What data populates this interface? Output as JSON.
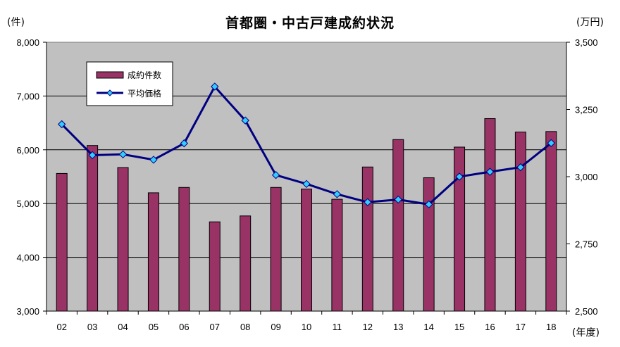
{
  "chart_data": {
    "type": "bar",
    "title": "首都圏・中古戸建成約状況",
    "y_left_unit": "(件)",
    "y_right_unit": "(万円)",
    "x_unit": "(年度)",
    "categories": [
      "02",
      "03",
      "04",
      "05",
      "06",
      "07",
      "08",
      "09",
      "10",
      "11",
      "12",
      "13",
      "14",
      "15",
      "16",
      "17",
      "18"
    ],
    "ylim_left": [
      3000,
      8000
    ],
    "yticks_left": [
      3000,
      4000,
      5000,
      6000,
      7000,
      8000
    ],
    "yticks_left_labels": [
      "3,000",
      "4,000",
      "5,000",
      "6,000",
      "7,000",
      "8,000"
    ],
    "ylim_right": [
      2500,
      3500
    ],
    "yticks_right": [
      2500,
      2750,
      3000,
      3250,
      3500
    ],
    "yticks_right_labels": [
      "2,500",
      "2,750",
      "3,000",
      "3,250",
      "3,500"
    ],
    "grid": "horizontal",
    "legend_position": "top-left",
    "series": [
      {
        "name": "成約件数",
        "type": "bar",
        "axis": "left",
        "color": "#993366",
        "values": [
          5560,
          6080,
          5670,
          5200,
          5300,
          4660,
          4770,
          5300,
          5270,
          5080,
          5680,
          6190,
          5480,
          6050,
          6580,
          6330,
          6340
        ]
      },
      {
        "name": "平均価格",
        "type": "line",
        "axis": "right",
        "color": "#000080",
        "marker_color": "#33CCFF",
        "values": [
          3195,
          3080,
          3083,
          3063,
          3124,
          3335,
          3209,
          3006,
          2973,
          2935,
          2905,
          2915,
          2897,
          3000,
          3018,
          3035,
          3125
        ]
      }
    ]
  }
}
